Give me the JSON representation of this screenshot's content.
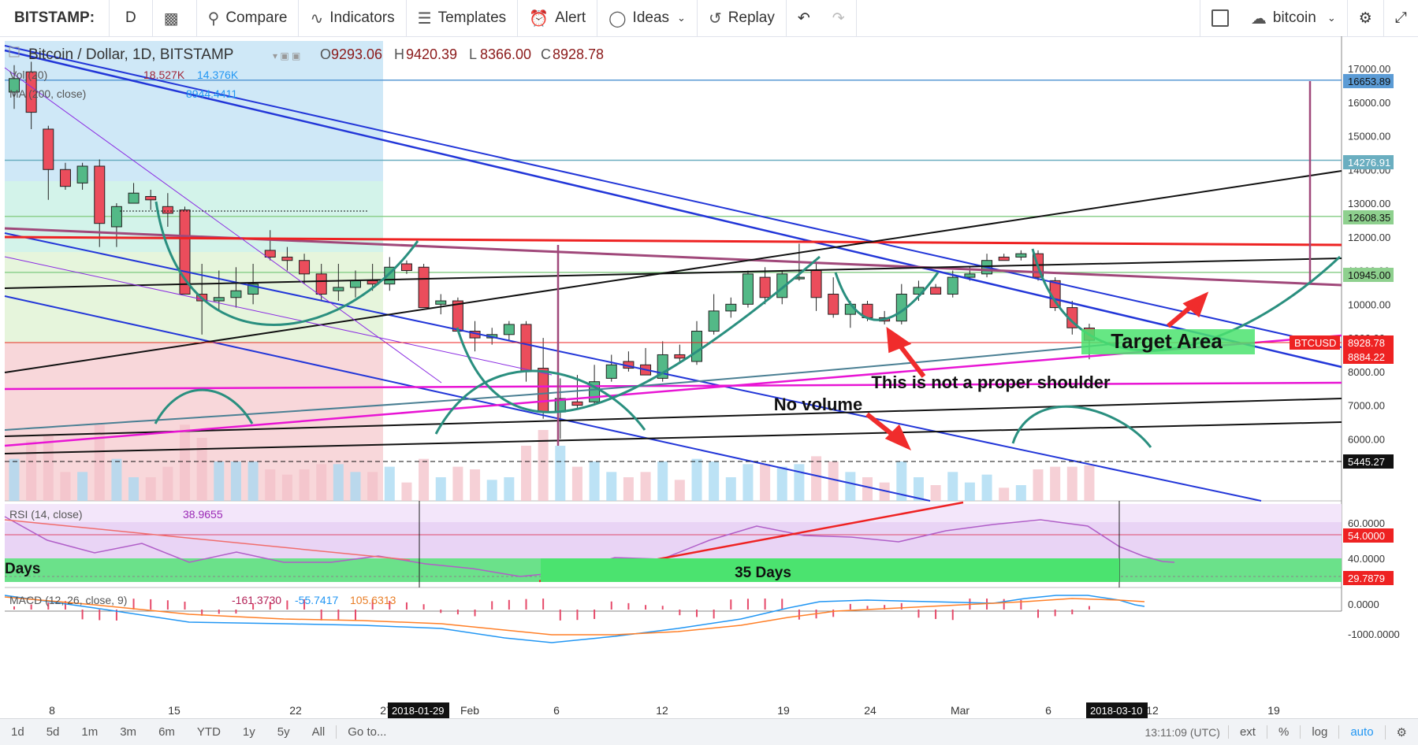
{
  "toolbar": {
    "symbol": "BITSTAMP:",
    "interval": "D",
    "compare": "Compare",
    "indicators": "Indicators",
    "templates": "Templates",
    "alert": "Alert",
    "ideas": "Ideas",
    "replay": "Replay",
    "account": "bitcoin"
  },
  "legend": {
    "title": "Bitcoin / Dollar, 1D, BITSTAMP",
    "o_label": "O",
    "o": "9293.06",
    "h_label": "H",
    "h": "9420.39",
    "l_label": "L",
    "l": "8366.00",
    "c_label": "C",
    "c": "8928.78",
    "vol_label": "Vol (20)",
    "vol_a": "18.527K",
    "vol_b": "14.376K",
    "ma_label": "MA (200, close)",
    "ma": "8944.4411"
  },
  "rsi": {
    "label": "RSI (14, close)",
    "value": "38.9655"
  },
  "macd": {
    "label": "MACD (12, 26, close, 9)",
    "v1": "-161.3730",
    "v2": "-55.7417",
    "v3": "105.6313"
  },
  "annotations": {
    "target": "Target Area",
    "shoulder": "This is not a proper shoulder",
    "novolume": "No volume",
    "days_left": "Days",
    "days_35": "35 Days"
  },
  "price_axis": [
    "17000.00",
    "16000.00",
    "15000.00",
    "14000.00",
    "13000.00",
    "12000.00",
    "11000.00",
    "10000.00",
    "9000.00",
    "8000.00",
    "7000.00",
    "6000.00"
  ],
  "price_badges": {
    "b16653": "16653.89",
    "b14276": "14276.91",
    "b12608": "12608.35",
    "b10945": "10945.00",
    "btcusd_label": "BTCUSD",
    "b8928": "8928.78",
    "b8884": "8884.22",
    "b5445": "5445.27"
  },
  "rsi_axis": {
    "t60": "60.0000",
    "b54": "54.0000",
    "t40": "40.0000",
    "b29": "29.7879"
  },
  "macd_axis": {
    "t0": "0.0000",
    "tm1000": "-1000.0000"
  },
  "date_axis": [
    "8",
    "15",
    "22",
    "27",
    "Feb",
    "6",
    "12",
    "19",
    "24",
    "Mar",
    "6",
    "12",
    "19"
  ],
  "date_badges": {
    "d1": "2018-01-29",
    "d2": "2018-03-10"
  },
  "bottom": {
    "ranges": [
      "1d",
      "5d",
      "1m",
      "3m",
      "6m",
      "YTD",
      "1y",
      "5y",
      "All"
    ],
    "goto": "Go to...",
    "clock": "13:11:09 (UTC)",
    "ext": "ext",
    "pct": "%",
    "log": "log",
    "auto": "auto"
  },
  "colors": {
    "up": "#53b987",
    "down": "#eb4d5c",
    "axis_bg": "#ffffff",
    "badge_red": "#e91e1e"
  },
  "chart_data": {
    "type": "candlestick",
    "title": "Bitcoin / Dollar, 1D, BITSTAMP",
    "x_ticks": [
      "8",
      "15",
      "22",
      "27",
      "Feb",
      "6",
      "12",
      "19",
      "24",
      "Mar",
      "6",
      "12",
      "19"
    ],
    "ylim": [
      5100,
      17500
    ],
    "series": [
      {
        "name": "BTCUSD",
        "ohlc": [
          [
            16300,
            17100,
            15800,
            16700
          ],
          [
            16900,
            17200,
            15200,
            15700
          ],
          [
            15200,
            15300,
            13100,
            14000
          ],
          [
            14000,
            14200,
            13400,
            13500
          ],
          [
            13600,
            14200,
            13400,
            14100
          ],
          [
            14100,
            14300,
            11700,
            12400
          ],
          [
            12300,
            13000,
            11700,
            12900
          ],
          [
            13000,
            13600,
            13000,
            13300
          ],
          [
            13200,
            13400,
            12800,
            13100
          ],
          [
            12900,
            13300,
            12300,
            12700
          ],
          [
            12800,
            12900,
            10300,
            10300
          ],
          [
            10300,
            11200,
            9100,
            10100
          ],
          [
            10100,
            11000,
            9800,
            10200
          ],
          [
            10200,
            11100,
            9900,
            10400
          ],
          [
            10300,
            11200,
            10000,
            10600
          ],
          [
            11600,
            12200,
            11300,
            11400
          ],
          [
            11400,
            11700,
            11000,
            11300
          ],
          [
            11300,
            11500,
            10600,
            10900
          ],
          [
            10900,
            11200,
            10100,
            10300
          ],
          [
            10400,
            11200,
            10100,
            10500
          ],
          [
            10500,
            11000,
            10200,
            10700
          ],
          [
            10700,
            11200,
            10400,
            10600
          ],
          [
            10600,
            11400,
            10400,
            11100
          ],
          [
            11200,
            11300,
            10900,
            11000
          ],
          [
            11100,
            11200,
            9900,
            9900
          ],
          [
            10000,
            10300,
            9700,
            10100
          ],
          [
            10100,
            10200,
            9200,
            9200
          ],
          [
            9200,
            9500,
            8600,
            9000
          ],
          [
            9000,
            9300,
            8800,
            9100
          ],
          [
            9100,
            9500,
            8900,
            9400
          ],
          [
            9400,
            9500,
            7700,
            8000
          ],
          [
            8100,
            9000,
            6600,
            6800
          ],
          [
            6800,
            7800,
            6000,
            7200
          ],
          [
            7100,
            7900,
            6900,
            7000
          ],
          [
            7100,
            8200,
            7000,
            7700
          ],
          [
            7800,
            8500,
            7700,
            8200
          ],
          [
            8300,
            8600,
            8000,
            8100
          ],
          [
            8200,
            8700,
            7900,
            7900
          ],
          [
            7800,
            8900,
            7700,
            8500
          ],
          [
            8500,
            8800,
            8300,
            8400
          ],
          [
            8300,
            9500,
            8200,
            9200
          ],
          [
            9200,
            10300,
            9100,
            9800
          ],
          [
            9800,
            10200,
            9600,
            10000
          ],
          [
            10000,
            11000,
            9900,
            10900
          ],
          [
            10800,
            11100,
            10000,
            10200
          ],
          [
            10200,
            11000,
            10000,
            10900
          ],
          [
            10800,
            11800,
            10700,
            10800
          ],
          [
            11000,
            11200,
            9800,
            10200
          ],
          [
            10300,
            10800,
            9600,
            9700
          ],
          [
            9700,
            10100,
            9300,
            10000
          ],
          [
            10000,
            10100,
            9500,
            9600
          ],
          [
            9600,
            9800,
            9400,
            9500
          ],
          [
            9500,
            10600,
            9400,
            10300
          ],
          [
            10300,
            10700,
            10100,
            10500
          ],
          [
            10500,
            10600,
            10300,
            10300
          ],
          [
            10300,
            11000,
            10200,
            10800
          ],
          [
            10800,
            11100,
            10700,
            10900
          ],
          [
            10900,
            11500,
            10800,
            11300
          ],
          [
            11400,
            11500,
            11300,
            11300
          ],
          [
            11400,
            11600,
            11300,
            11500
          ],
          [
            11500,
            11600,
            10700,
            10800
          ],
          [
            10700,
            10800,
            9800,
            9900
          ],
          [
            9900,
            10100,
            9100,
            9300
          ],
          [
            9293,
            9420,
            8366,
            8929
          ]
        ]
      }
    ],
    "levels": [
      16653.89,
      14276.91,
      12608.35,
      10945.0,
      8928.78,
      8884.22,
      5445.27
    ],
    "rsi": {
      "name": "RSI (14, close)",
      "last": 38.9655,
      "bands": [
        40,
        60
      ],
      "ylim": [
        25,
        70
      ]
    },
    "macd": {
      "name": "MACD (12, 26, close, 9)",
      "values": [
        -161.373,
        -55.7417,
        105.6313
      ]
    }
  }
}
